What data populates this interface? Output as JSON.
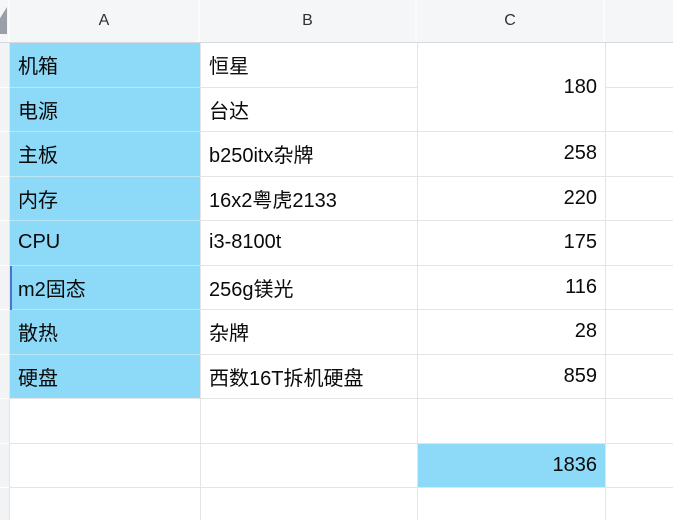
{
  "sheet": {
    "column_headers": [
      {
        "label": "A"
      },
      {
        "label": "B"
      },
      {
        "label": "C"
      }
    ],
    "items": [
      {
        "part": "机箱",
        "brand": "恒星"
      },
      {
        "part": "电源",
        "brand": "台达"
      },
      {
        "part": "主板",
        "brand": "b250itx杂牌",
        "price": "258"
      },
      {
        "part": "内存",
        "brand": "16x2粤虎2133",
        "price": "220"
      },
      {
        "part": "CPU",
        "brand": "i3-8100t",
        "price": "175"
      },
      {
        "part": "m2固态",
        "brand": "256g镁光",
        "price": "116"
      },
      {
        "part": "散热",
        "brand": "杂牌",
        "price": "28"
      },
      {
        "part": "硬盘",
        "brand": "西数16T拆机硬盘",
        "price": "859"
      }
    ],
    "merged_price_rows_1_2": "180",
    "total": "1836",
    "colors": {
      "highlight_fill": "#8cd9f8",
      "grid_line": "#e4e4e4",
      "header_bg": "#f5f6f7",
      "header_text": "#2e3238",
      "active_indicator": "#4d74cd",
      "corner_triangle": "#9ba0a8"
    }
  }
}
